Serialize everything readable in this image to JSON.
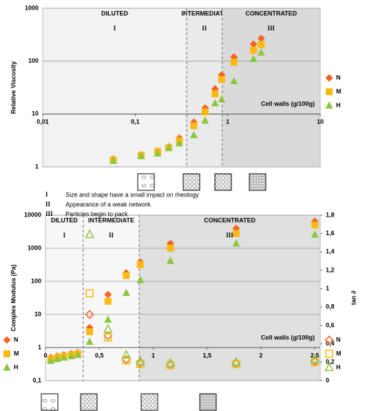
{
  "chart_data": [
    {
      "type": "scatter",
      "y_title": "Relative Viscosity",
      "x_title": "Cell walls (g/100g)",
      "x_log": true,
      "y_log": true,
      "xlim": [
        0.01,
        10
      ],
      "ylim": [
        1,
        1000
      ],
      "xticks": [
        {
          "value": 0.01,
          "label": "0,01"
        },
        {
          "value": 0.1,
          "label": "0,1"
        },
        1,
        10
      ],
      "yticks": [
        1,
        10,
        100,
        1000
      ],
      "grid": true,
      "x_axis_at": 10,
      "legend": "right",
      "numeral_color": "#cc66ff",
      "regions": [
        {
          "label": "DILUTED",
          "numeral": "I",
          "color": "#f2f2f2"
        },
        {
          "label": "INTERMEDIATE",
          "numeral": "II",
          "color": "#eaeaea"
        },
        {
          "label": "CONCENTRATED",
          "numeral": "III",
          "color": "#dadada"
        }
      ],
      "boundaries": [
        0.36,
        0.87
      ],
      "x": [
        0.058,
        0.116,
        0.175,
        0.23,
        0.3,
        0.43,
        0.57,
        0.73,
        0.86,
        1.17,
        1.9,
        2.3
      ],
      "series": [
        {
          "name": "N",
          "color": "#f26522",
          "marker": "diamond",
          "filled": true,
          "values": [
            1.4,
            1.7,
            2.0,
            2.4,
            3.5,
            7,
            13,
            30,
            55,
            120,
            210,
            270
          ]
        },
        {
          "name": "M",
          "color": "#fdb913",
          "marker": "square",
          "filled": true,
          "values": [
            1.35,
            1.65,
            1.95,
            2.3,
            3.1,
            6,
            11,
            24,
            45,
            95,
            160,
            205
          ]
        },
        {
          "name": "H",
          "color": "#8dc63f",
          "marker": "triangle",
          "filled": true,
          "values": [
            1.3,
            1.6,
            1.8,
            2.3,
            2.8,
            4,
            7.5,
            16,
            19,
            42,
            110,
            145
          ]
        }
      ]
    },
    {
      "type": "scatter",
      "y_title": "Complex Modulus (Pa)",
      "y2_title": "tan ∂",
      "x_title": "Cell walls (g/100g)",
      "x_log": false,
      "y_log": true,
      "xlim": [
        0,
        2.55
      ],
      "ylim": [
        0.1,
        10000
      ],
      "y2lim": [
        0,
        1.8
      ],
      "xticks": [
        0,
        {
          "value": 0.5,
          "label": "0,5"
        },
        1,
        {
          "value": 1.5,
          "label": "1,5"
        },
        2,
        {
          "value": 2.5,
          "label": "2,5"
        }
      ],
      "yticks": [
        {
          "value": 0.1,
          "label": "0,1"
        },
        1,
        10,
        100,
        1000,
        10000
      ],
      "y2ticks": [
        0,
        {
          "value": 0.2,
          "label": "0,2"
        },
        {
          "value": 0.4,
          "label": "0,4"
        },
        {
          "value": 0.6,
          "label": "0,6"
        },
        {
          "value": 0.8,
          "label": "0,8"
        },
        1,
        {
          "value": 1.2,
          "label": "1,2"
        },
        {
          "value": 1.4,
          "label": "1,4"
        },
        {
          "value": 1.6,
          "label": "1,6"
        },
        {
          "value": 1.8,
          "label": "1,8"
        }
      ],
      "grid": true,
      "x_axis_at": 1,
      "numeral_color": "#cc66ff",
      "regions": [
        {
          "label": "DILUTED",
          "numeral": "I",
          "color": "#f7f7f7"
        },
        {
          "label": "INTERMEDIATE",
          "numeral": "II",
          "color": "#f7f7f7"
        },
        {
          "label": "CONCENTRATED",
          "numeral": "III",
          "color": "#e0e0e0"
        }
      ],
      "boundaries": [
        0.35,
        0.87
      ],
      "series": [
        {
          "name": "N",
          "color": "#f26522",
          "marker": "diamond",
          "filled": true,
          "axis": "y",
          "x": [
            0.05,
            0.11,
            0.17,
            0.24,
            0.3,
            0.41,
            0.58,
            0.75,
            0.88,
            1.16,
            1.77,
            2.5
          ],
          "values": [
            0.5,
            0.55,
            0.6,
            0.65,
            0.7,
            4,
            40,
            180,
            380,
            1400,
            4000,
            6500
          ]
        },
        {
          "name": "M",
          "color": "#fdb913",
          "marker": "square",
          "filled": true,
          "axis": "y",
          "x": [
            0.05,
            0.11,
            0.17,
            0.24,
            0.3,
            0.41,
            0.58,
            0.75,
            0.88,
            1.16,
            1.77,
            2.5
          ],
          "values": [
            0.45,
            0.5,
            0.55,
            0.6,
            0.65,
            3,
            25,
            150,
            320,
            1000,
            2800,
            5000
          ]
        },
        {
          "name": "H",
          "color": "#8dc63f",
          "marker": "triangle",
          "filled": true,
          "axis": "y",
          "x": [
            0.05,
            0.11,
            0.17,
            0.24,
            0.3,
            0.41,
            0.58,
            0.75,
            0.88,
            1.16,
            1.77,
            2.5
          ],
          "values": [
            0.4,
            0.45,
            0.5,
            0.55,
            0.6,
            1.5,
            7,
            45,
            110,
            420,
            1400,
            2600
          ]
        },
        {
          "name": "N",
          "color": "#f26522",
          "marker": "diamond",
          "filled": false,
          "axis": "y2",
          "x": [
            0.41,
            0.58,
            0.75,
            0.88,
            1.16,
            1.77,
            2.5
          ],
          "values": [
            0.72,
            0.49,
            0.23,
            0.19,
            0.17,
            0.19,
            0.21
          ]
        },
        {
          "name": "M",
          "color": "#fdb913",
          "marker": "square",
          "filled": false,
          "axis": "y2",
          "x": [
            0.41,
            0.58,
            0.75,
            0.88,
            1.16,
            1.77,
            2.5
          ],
          "values": [
            0.95,
            0.47,
            0.22,
            0.18,
            0.17,
            0.18,
            0.2
          ]
        },
        {
          "name": "H",
          "color": "#8dc63f",
          "marker": "triangle",
          "filled": false,
          "axis": "y2",
          "x": [
            0.41,
            0.58,
            0.75,
            0.88,
            1.16,
            1.77,
            2.5
          ],
          "values": [
            1.59,
            0.56,
            0.28,
            0.21,
            0.19,
            0.2,
            0.23
          ]
        }
      ]
    }
  ],
  "notes": [
    {
      "numeral": "I",
      "text": "Size and shape have a small impact on rheology"
    },
    {
      "numeral": "II",
      "text": "Appearance of a weak network"
    },
    {
      "numeral": "III",
      "text": "Particles begin to pack"
    }
  ]
}
